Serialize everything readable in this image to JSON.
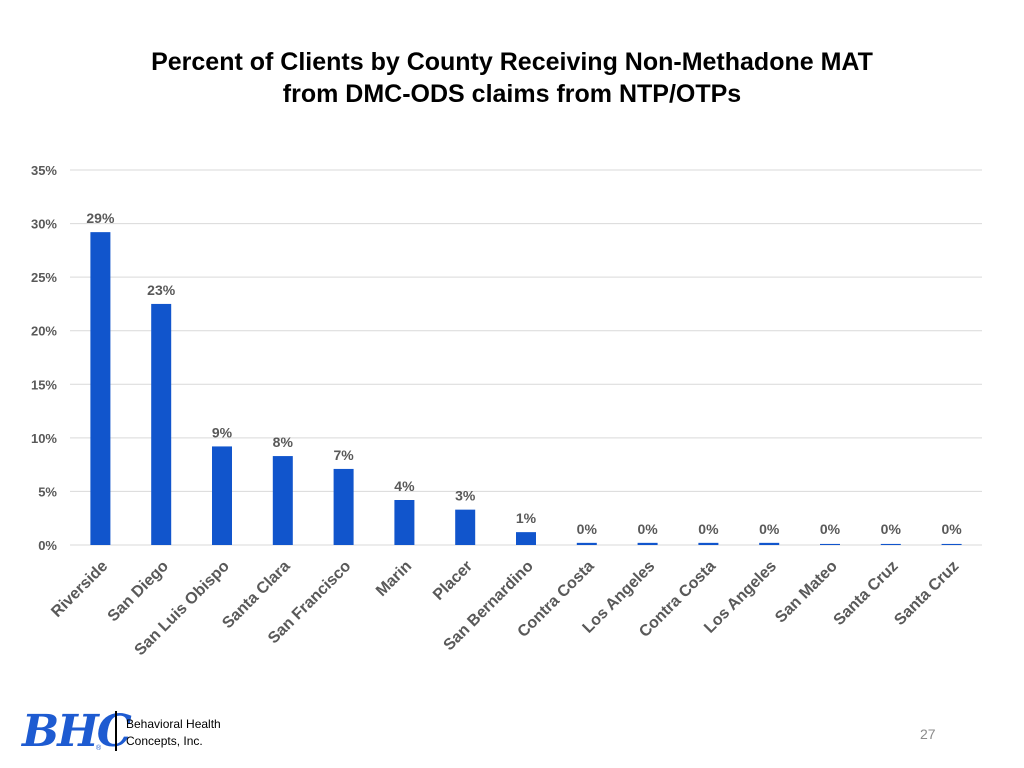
{
  "title": {
    "line1": "Percent of Clients by County Receiving Non-Methadone MAT",
    "line2": "from DMC-ODS claims from NTP/OTPs"
  },
  "footer": {
    "logo_text": "BHC",
    "logo_mark": "®",
    "company_line1": "Behavioral Health",
    "company_line2": "Concepts, Inc.",
    "page_number": "27"
  },
  "colors": {
    "bar": "#1155cc",
    "grid": "#d9d9d9",
    "text": "#595959"
  },
  "chart_data": {
    "type": "bar",
    "title": "Percent of Clients by County Receiving Non-Methadone MAT from DMC-ODS claims from NTP/OTPs",
    "categories": [
      "Riverside",
      "San Diego",
      "San Luis Obispo",
      "Santa Clara",
      "San Francisco",
      "Marin",
      "Placer",
      "San Bernardino",
      "Contra Costa",
      "Los Angeles",
      "Contra Costa",
      "Los Angeles",
      "San Mateo",
      "Santa Cruz",
      "Santa Cruz"
    ],
    "values": [
      29.2,
      22.5,
      9.2,
      8.3,
      7.1,
      4.2,
      3.3,
      1.2,
      0.2,
      0.2,
      0.2,
      0.2,
      0.1,
      0.1,
      0.1
    ],
    "data_labels": [
      "29%",
      "23%",
      "9%",
      "8%",
      "7%",
      "4%",
      "3%",
      "1%",
      "0%",
      "0%",
      "0%",
      "0%",
      "0%",
      "0%",
      "0%"
    ],
    "yticks": [
      0,
      5,
      10,
      15,
      20,
      25,
      30,
      35
    ],
    "ytick_labels": [
      "0%",
      "5%",
      "10%",
      "15%",
      "20%",
      "25%",
      "30%",
      "35%"
    ],
    "ylim": [
      0,
      35
    ],
    "grid": true,
    "legend": "none"
  }
}
